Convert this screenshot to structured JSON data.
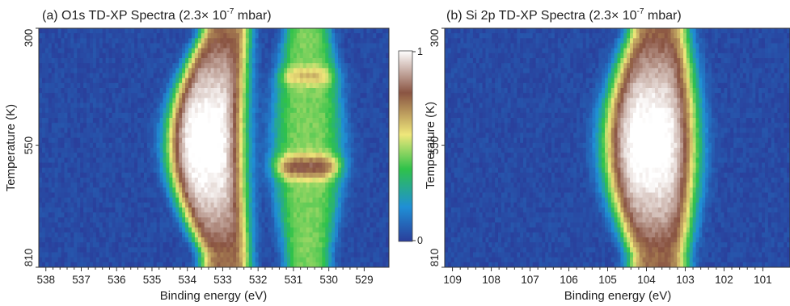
{
  "chart_data": [
    {
      "type": "heatmap",
      "title": "(a) O1s TD-XP Spectra (2.3× 10",
      "title_exp": "-7",
      "title_end": " mbar)",
      "xlabel": "Binding energy (eV)",
      "ylabel": "Temperature (K)",
      "x_ticks": [
        538,
        537,
        536,
        535,
        534,
        533,
        532,
        531,
        530,
        529
      ],
      "xlim": [
        538.2,
        528.3
      ],
      "y_ticks": [
        300,
        550,
        810
      ],
      "ylim": [
        300,
        810
      ],
      "bands": [
        {
          "name": "main",
          "peak": 533.2,
          "sigma": 0.55,
          "amplitude": 1.0,
          "drift_ev": 0.55
        },
        {
          "name": "shoulder",
          "peak": 530.6,
          "sigma": 0.5,
          "amplitude": 0.42,
          "drift_ev": 0.0
        }
      ],
      "colorbar": {
        "label": "Temperature (K)",
        "min": 0,
        "max": 1,
        "ticks": [
          "0",
          "1"
        ]
      }
    },
    {
      "type": "heatmap",
      "title": "(b) Si 2p TD-XP Spectra (2.3× 10",
      "title_exp": "-7",
      "title_end": " mbar)",
      "xlabel": "Binding energy (eV)",
      "ylabel": "",
      "x_ticks": [
        109,
        108,
        107,
        106,
        105,
        104,
        103,
        102,
        101
      ],
      "xlim": [
        109.2,
        100.3
      ],
      "y_ticks": [
        300,
        550,
        810
      ],
      "ylim": [
        300,
        810
      ],
      "bands": [
        {
          "name": "main",
          "peak": 103.8,
          "sigma": 0.6,
          "amplitude": 1.0,
          "drift_ev": 0.2
        }
      ]
    }
  ],
  "colors": {
    "low": "#2a3d9a",
    "mid": "#2fc24a",
    "yellow": "#efe77a",
    "brown": "#8a5442",
    "high": "#ffffff"
  }
}
